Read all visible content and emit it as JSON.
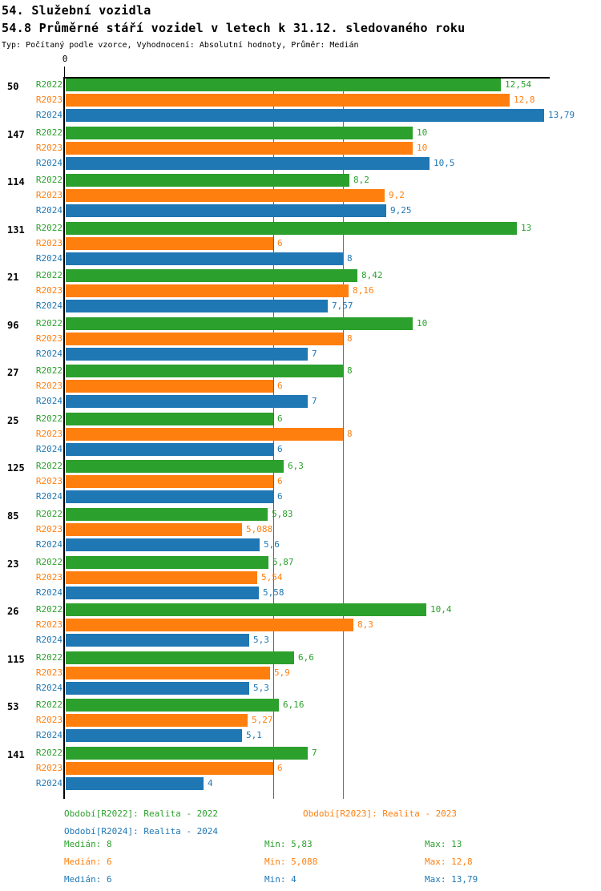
{
  "header": {
    "title": "54. Služební vozidla",
    "subtitle": "54.8 Průměrné stáří vozidel v letech k 31.12. sledovaného roku",
    "meta": "Typ: Počítaný podle vzorce, Vyhodnocení: Absolutní hodnoty, Průměr: Medián"
  },
  "chart_data": {
    "type": "bar",
    "orientation": "horizontal",
    "title": "54.8 Průměrné stáří vozidel v letech k 31.12. sledovaného roku",
    "origin_label": "0",
    "xlim": [
      0,
      13.95
    ],
    "categories": [
      "50",
      "147",
      "114",
      "131",
      "21",
      "96",
      "27",
      "25",
      "125",
      "85",
      "23",
      "26",
      "115",
      "53",
      "141"
    ],
    "series": [
      {
        "name": "R2022",
        "color": "#2ca02c",
        "values": [
          12.54,
          10,
          8.2,
          13,
          8.42,
          10,
          8,
          6,
          6.3,
          5.83,
          5.87,
          10.4,
          6.6,
          6.16,
          7
        ],
        "labels": [
          "12,54",
          "10",
          "8,2",
          "13",
          "8,42",
          "10",
          "8",
          "6",
          "6,3",
          "5,83",
          "5,87",
          "10,4",
          "6,6",
          "6,16",
          "7"
        ]
      },
      {
        "name": "R2023",
        "color": "#ff7f0e",
        "values": [
          12.8,
          10,
          9.2,
          6,
          8.16,
          8,
          6,
          8,
          6,
          5.088,
          5.54,
          8.3,
          5.9,
          5.27,
          6
        ],
        "labels": [
          "12,8",
          "10",
          "9,2",
          "6",
          "8,16",
          "8",
          "6",
          "8",
          "6",
          "5,088",
          "5,54",
          "8,3",
          "5,9",
          "5,27",
          "6"
        ]
      },
      {
        "name": "R2024",
        "color": "#1f77b4",
        "values": [
          13.79,
          10.5,
          9.25,
          8,
          7.57,
          7,
          7,
          6,
          6,
          5.6,
          5.58,
          5.3,
          5.3,
          5.1,
          4
        ],
        "labels": [
          "13,79",
          "10,5",
          "9,25",
          "8",
          "7,57",
          "7",
          "7",
          "6",
          "6",
          "5,6",
          "5,58",
          "5,3",
          "5,3",
          "5,1",
          "4"
        ]
      }
    ],
    "reference_lines": [
      {
        "value": 6,
        "color": "#1f77b4"
      },
      {
        "value": 8,
        "color": "#2ca02c"
      }
    ],
    "legend_position": "bottom"
  },
  "legend": {
    "periods": [
      {
        "name": "R2022",
        "label": "Období[R2022]: Realita - 2022",
        "color": "#2ca02c"
      },
      {
        "name": "R2023",
        "label": "Období[R2023]: Realita - 2023",
        "color": "#ff7f0e"
      },
      {
        "name": "R2024",
        "label": "Období[R2024]: Realita - 2024",
        "color": "#1f77b4"
      }
    ],
    "stats": [
      {
        "series": "R2022",
        "median": "Medián: 8",
        "min": "Min: 5,83",
        "max": "Max: 13"
      },
      {
        "series": "R2023",
        "median": "Medián: 6",
        "min": "Min: 5,088",
        "max": "Max: 12,8"
      },
      {
        "series": "R2024",
        "median": "Medián: 6",
        "min": "Min: 4",
        "max": "Max: 13,79"
      }
    ]
  }
}
